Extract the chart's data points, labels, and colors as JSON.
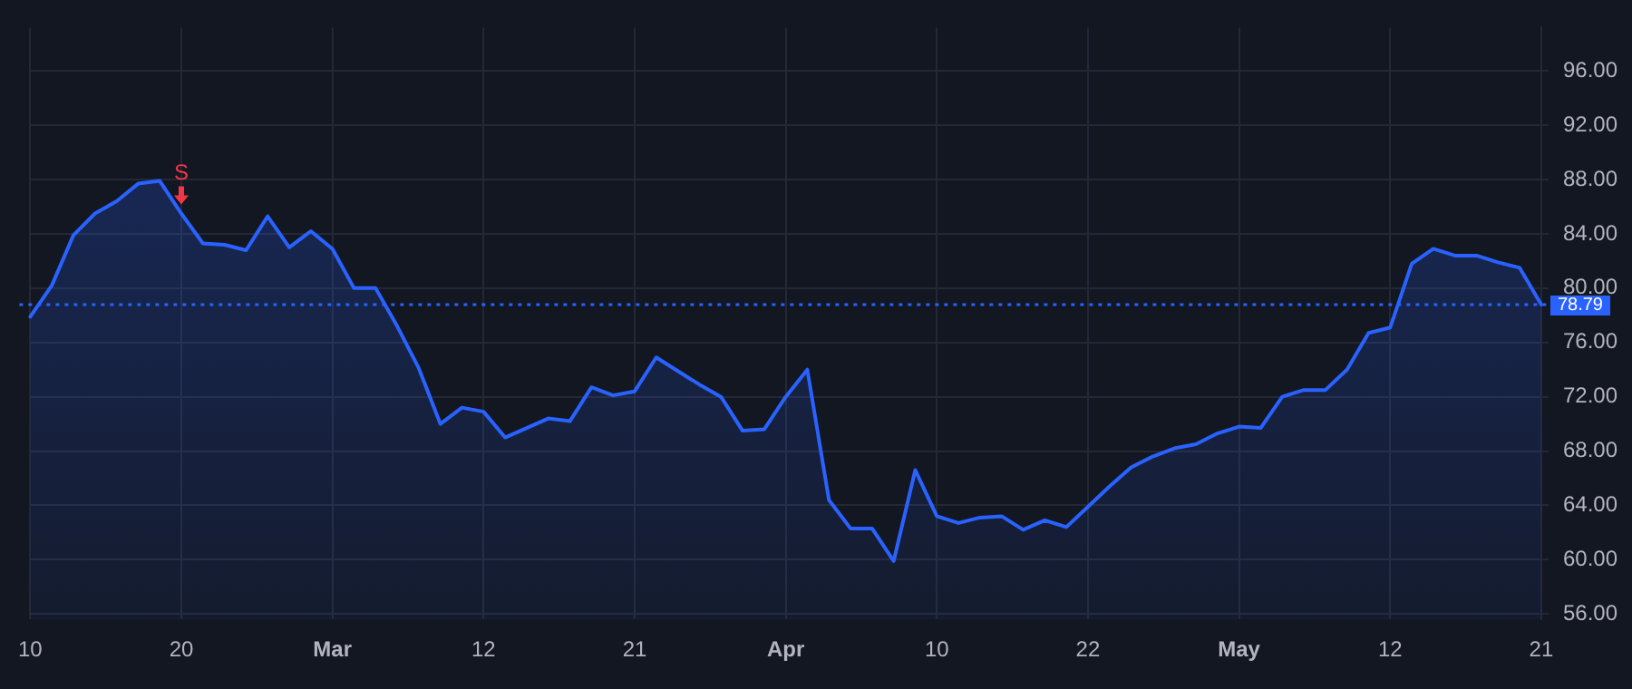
{
  "chart_data": {
    "type": "area",
    "categories": [
      "10",
      null,
      null,
      null,
      null,
      null,
      null,
      "20",
      null,
      null,
      null,
      null,
      null,
      null,
      "Mar",
      null,
      null,
      null,
      null,
      null,
      null,
      "12",
      null,
      null,
      null,
      null,
      null,
      null,
      "21",
      null,
      null,
      null,
      null,
      null,
      null,
      "Apr",
      null,
      null,
      null,
      null,
      null,
      null,
      "10",
      null,
      null,
      null,
      null,
      null,
      null,
      "22",
      null,
      null,
      null,
      null,
      null,
      null,
      "May",
      null,
      null,
      null,
      null,
      null,
      null,
      "12",
      null,
      null,
      null,
      null,
      null,
      null,
      "21"
    ],
    "series": [
      {
        "color": "#2962ff",
        "values": [
          77.9,
          80.2,
          83.9,
          85.5,
          86.4,
          87.7,
          87.9,
          85.5,
          83.3,
          83.2,
          82.8,
          85.3,
          83.0,
          84.2,
          82.9,
          80.0,
          80.0,
          77.2,
          74.1,
          70.0,
          71.2,
          70.9,
          69.0,
          69.7,
          70.4,
          70.2,
          72.7,
          72.1,
          72.4,
          74.9,
          73.9,
          72.9,
          72.0,
          69.5,
          69.6,
          72.0,
          74.0,
          64.4,
          62.3,
          62.3,
          59.9,
          66.6,
          63.2,
          62.7,
          63.1,
          63.2,
          62.2,
          62.9,
          62.4,
          63.9,
          65.4,
          66.8,
          67.6,
          68.2,
          68.5,
          69.3,
          69.8,
          69.7,
          72.0,
          72.5,
          72.5,
          74.0,
          76.7,
          77.1,
          81.8,
          82.9,
          82.4,
          82.4,
          81.9,
          81.5,
          78.79
        ]
      }
    ],
    "ylim": [
      55.6,
      99.2
    ],
    "yticks": [
      {
        "value": 56,
        "label": "56.00"
      },
      {
        "value": 60,
        "label": "60.00"
      },
      {
        "value": 64,
        "label": "64.00"
      },
      {
        "value": 68,
        "label": "68.00"
      },
      {
        "value": 72,
        "label": "72.00"
      },
      {
        "value": 76,
        "label": "76.00"
      },
      {
        "value": 80,
        "label": "80.00"
      },
      {
        "value": 84,
        "label": "84.00"
      },
      {
        "value": 88,
        "label": "88.00"
      },
      {
        "value": 92,
        "label": "92.00"
      },
      {
        "value": 96,
        "label": "96.00"
      }
    ],
    "ref_lines": [
      {
        "axis": "y",
        "value": 78.79,
        "label": "78.79",
        "color": "#2962ff",
        "line_style": "dotted"
      }
    ],
    "annotations": [
      {
        "text": "S",
        "x": "20",
        "y": 85.5
      }
    ],
    "grid": true,
    "legend": false,
    "marker": "none",
    "line_style": "solid"
  }
}
